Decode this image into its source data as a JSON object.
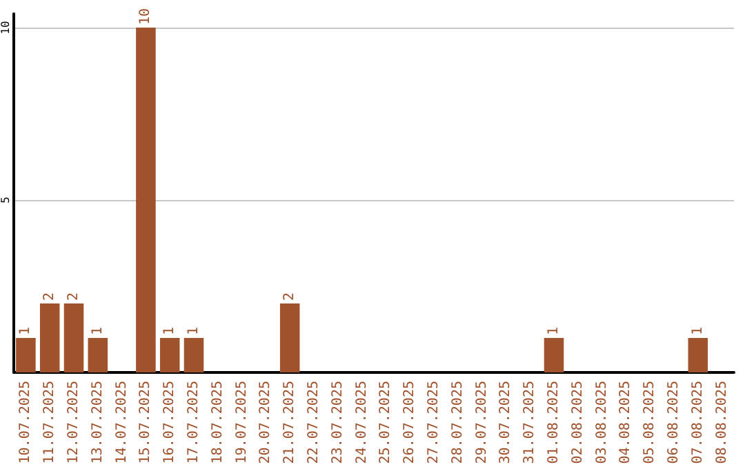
{
  "chart_data": {
    "type": "bar",
    "categories": [
      "10.07.2025",
      "11.07.2025",
      "12.07.2025",
      "13.07.2025",
      "14.07.2025",
      "15.07.2025",
      "16.07.2025",
      "17.07.2025",
      "18.07.2025",
      "19.07.2025",
      "20.07.2025",
      "21.07.2025",
      "22.07.2025",
      "23.07.2025",
      "24.07.2025",
      "25.07.2025",
      "26.07.2025",
      "27.07.2025",
      "28.07.2025",
      "29.07.2025",
      "30.07.2025",
      "31.07.2025",
      "01.08.2025",
      "02.08.2025",
      "03.08.2025",
      "04.08.2025",
      "05.08.2025",
      "06.08.2025",
      "07.08.2025",
      "08.08.2025"
    ],
    "values": [
      1,
      2,
      2,
      1,
      0,
      10,
      1,
      1,
      0,
      0,
      0,
      2,
      0,
      0,
      0,
      0,
      0,
      0,
      0,
      0,
      0,
      0,
      1,
      0,
      0,
      0,
      0,
      0,
      1,
      0
    ],
    "value_labels": [
      "1",
      "2",
      "2",
      "1",
      null,
      "10",
      "1",
      "1",
      null,
      null,
      null,
      "2",
      null,
      null,
      null,
      null,
      null,
      null,
      null,
      null,
      null,
      null,
      "1",
      null,
      null,
      null,
      null,
      null,
      "1",
      null
    ],
    "color": "#a0522d",
    "ylim": [
      0,
      10.4
    ],
    "yticks": [
      {
        "value": 0,
        "label": null
      },
      5,
      10
    ],
    "grid": "y"
  }
}
